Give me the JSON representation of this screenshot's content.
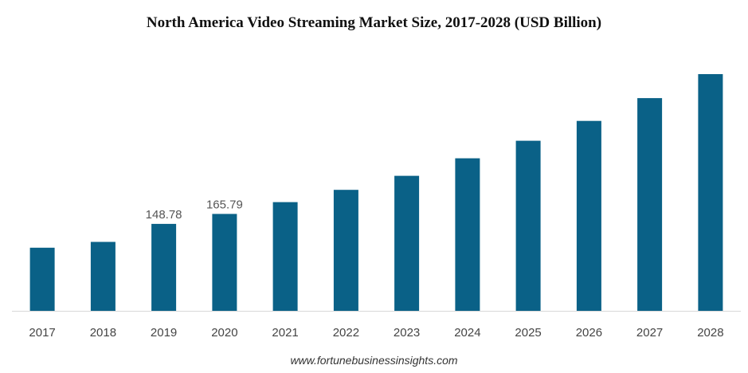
{
  "chart_data": {
    "type": "bar",
    "title": "North America Video Streaming Market Size, 2017-2028 (USD Billion)",
    "categories": [
      "2017",
      "2018",
      "2019",
      "2020",
      "2021",
      "2022",
      "2023",
      "2024",
      "2025",
      "2026",
      "2027",
      "2028"
    ],
    "values": [
      108,
      118,
      148.78,
      165.79,
      186,
      207,
      231,
      261,
      291,
      325,
      364,
      405
    ],
    "data_labels": [
      "",
      "",
      "148.78",
      "165.79",
      "",
      "",
      "",
      "",
      "",
      "",
      "",
      ""
    ],
    "xlabel": "",
    "ylabel": "",
    "ylim": [
      0,
      420
    ],
    "grid": false,
    "legend": "none",
    "bar_color": "#0a6187",
    "axis_color": "#d9d9d9"
  },
  "source": "www.fortunebusinessinsights.com"
}
